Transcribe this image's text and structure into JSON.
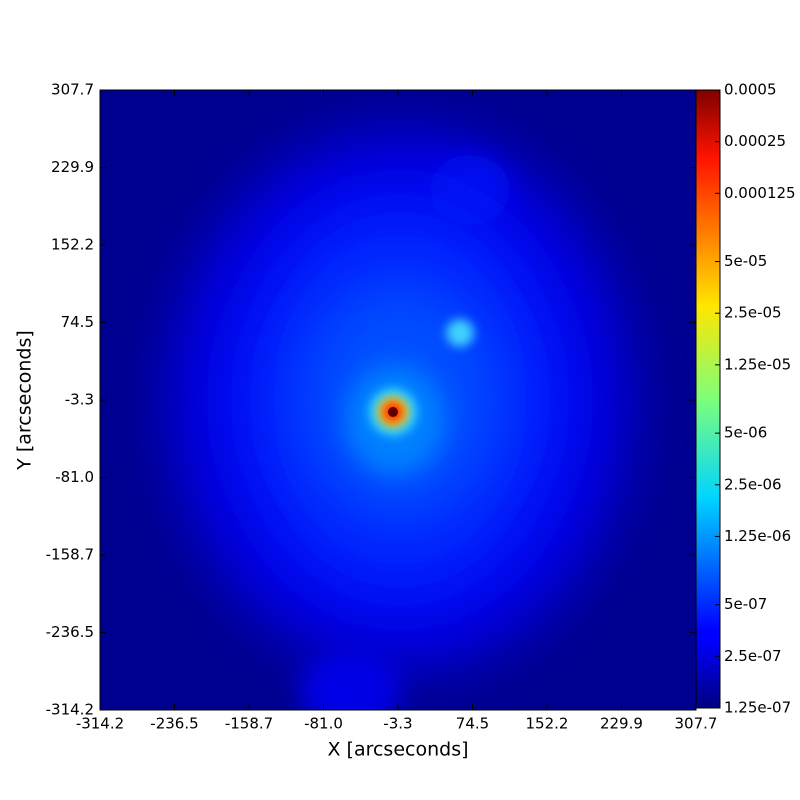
{
  "chart_data": {
    "type": "heatmap",
    "xlabel": "X [arcseconds]",
    "ylabel": "Y [arcseconds]",
    "xlim": [
      -314.2,
      307.7
    ],
    "ylim": [
      -314.2,
      307.7
    ],
    "xticks": [
      -314.2,
      -236.5,
      -158.7,
      {
        "value": -81,
        "label": "-81.0"
      },
      -3.3,
      74.5,
      152.2,
      229.9,
      307.7
    ],
    "yticks": [
      -314.2,
      -236.5,
      -158.7,
      {
        "value": -81,
        "label": "-81.0"
      },
      -3.3,
      74.5,
      152.2,
      229.9,
      307.7
    ],
    "colormap": "jet",
    "colorbar": {
      "scale": "log",
      "lim": [
        1.25e-07,
        0.0005
      ],
      "ticks": [
        {
          "value": 1.25e-07,
          "label": "1.25e-07"
        },
        {
          "value": 2.5e-07,
          "label": "2.5e-07"
        },
        {
          "value": 5e-07,
          "label": "5e-07"
        },
        {
          "value": 1.25e-06,
          "label": "1.25e-06"
        },
        {
          "value": 2.5e-06,
          "label": "2.5e-06"
        },
        {
          "value": 5e-06,
          "label": "5e-06"
        },
        {
          "value": 1.25e-05,
          "label": "1.25e-05"
        },
        {
          "value": 2.5e-05,
          "label": "2.5e-05"
        },
        {
          "value": 5e-05,
          "label": "5e-05"
        },
        0.000125,
        0.00025,
        0.0005
      ]
    }
  }
}
